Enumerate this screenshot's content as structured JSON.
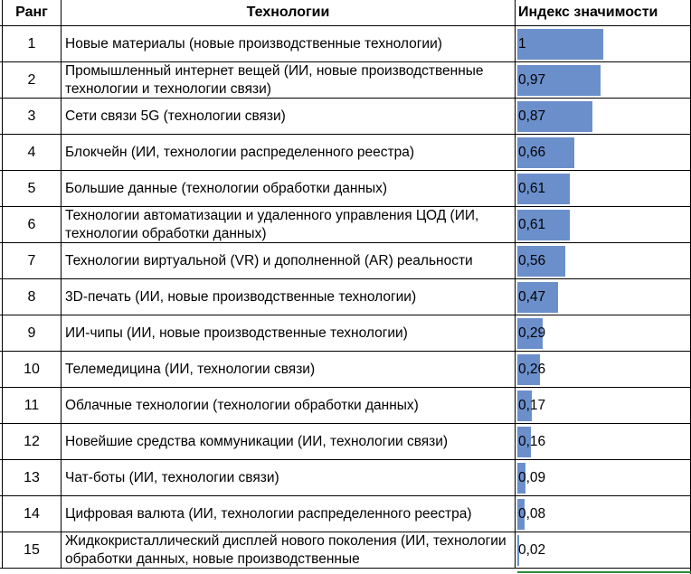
{
  "header": {
    "rank": "Ранг",
    "tech": "Технологии",
    "index": "Индекс значимости"
  },
  "bar_color": "#6b8fcb",
  "rows": [
    {
      "rank": "1",
      "tech": "Новые материалы (новые производственные технологии)",
      "value_label": "1",
      "value": 1.0
    },
    {
      "rank": "2",
      "tech": "Промышленный интернет вещей (ИИ, новые производственные технологии и технологии связи)",
      "value_label": "0,97",
      "value": 0.97
    },
    {
      "rank": "3",
      "tech": "Сети связи 5G (технологии связи)",
      "value_label": "0,87",
      "value": 0.87
    },
    {
      "rank": "4",
      "tech": "Блокчейн (ИИ, технологии распределенного реестра)",
      "value_label": "0,66",
      "value": 0.66
    },
    {
      "rank": "5",
      "tech": "Большие данные (технологии обработки данных)",
      "value_label": "0,61",
      "value": 0.61
    },
    {
      "rank": "6",
      "tech": "Технологии автоматизации и удаленного управления ЦОД (ИИ, технологии обработки данных)",
      "value_label": "0,61",
      "value": 0.61
    },
    {
      "rank": "7",
      "tech": "Технологии виртуальной (VR) и дополненной (AR) реальности",
      "value_label": "0,56",
      "value": 0.56
    },
    {
      "rank": "8",
      "tech": "3D-печать (ИИ, новые производственные технологии)",
      "value_label": "0,47",
      "value": 0.47
    },
    {
      "rank": "9",
      "tech": "ИИ-чипы (ИИ, новые производственные технологии)",
      "value_label": "0,29",
      "value": 0.29
    },
    {
      "rank": "10",
      "tech": "Телемедицина (ИИ, технологии связи)",
      "value_label": "0,26",
      "value": 0.26
    },
    {
      "rank": "11",
      "tech": "Облачные технологии (технологии обработки данных)",
      "value_label": "0,17",
      "value": 0.17
    },
    {
      "rank": "12",
      "tech": "Новейшие средства коммуникации (ИИ, технологии связи)",
      "value_label": "0,16",
      "value": 0.16
    },
    {
      "rank": "13",
      "tech": "Чат-боты (ИИ, технологии связи)",
      "value_label": "0,09",
      "value": 0.09
    },
    {
      "rank": "14",
      "tech": "Цифровая валюта (ИИ, технологии распределенного реестра)",
      "value_label": "0,08",
      "value": 0.08
    },
    {
      "rank": "15",
      "tech": "Жидкокристаллический дисплей нового поколения (ИИ, технологии обработки данных, новые производственные",
      "value_label": "0,02",
      "value": 0.02
    }
  ]
}
